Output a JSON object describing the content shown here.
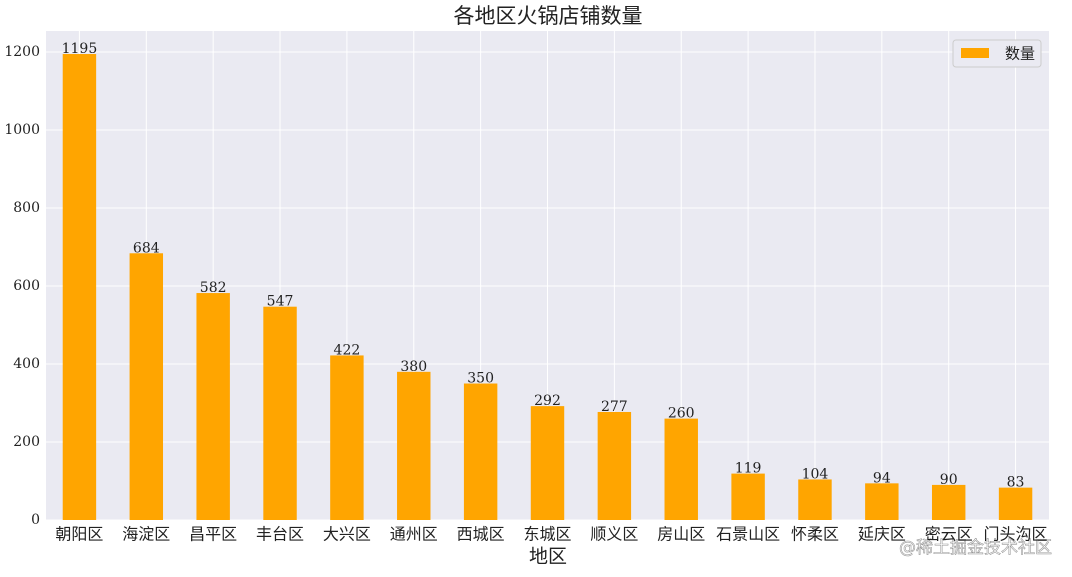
{
  "chart_data": {
    "type": "bar",
    "title": "各地区火锅店铺数量",
    "x_label": "地区",
    "categories": [
      "朝阳区",
      "海淀区",
      "昌平区",
      "丰台区",
      "大兴区",
      "通州区",
      "西城区",
      "东城区",
      "顺义区",
      "房山区",
      "石景山区",
      "怀柔区",
      "延庆区",
      "密云区",
      "门头沟区"
    ],
    "series": [
      {
        "name": "数量",
        "color": "#ffa500",
        "values": [
          1195,
          684,
          582,
          547,
          422,
          380,
          350,
          292,
          277,
          260,
          119,
          104,
          94,
          90,
          83
        ]
      }
    ],
    "ylim": [
      0,
      1254
    ],
    "yticks": [
      0,
      200,
      400,
      600,
      800,
      1000,
      1200
    ],
    "grid": true,
    "legend": "upper right",
    "watermark": "@稀土掘金技术社区"
  }
}
